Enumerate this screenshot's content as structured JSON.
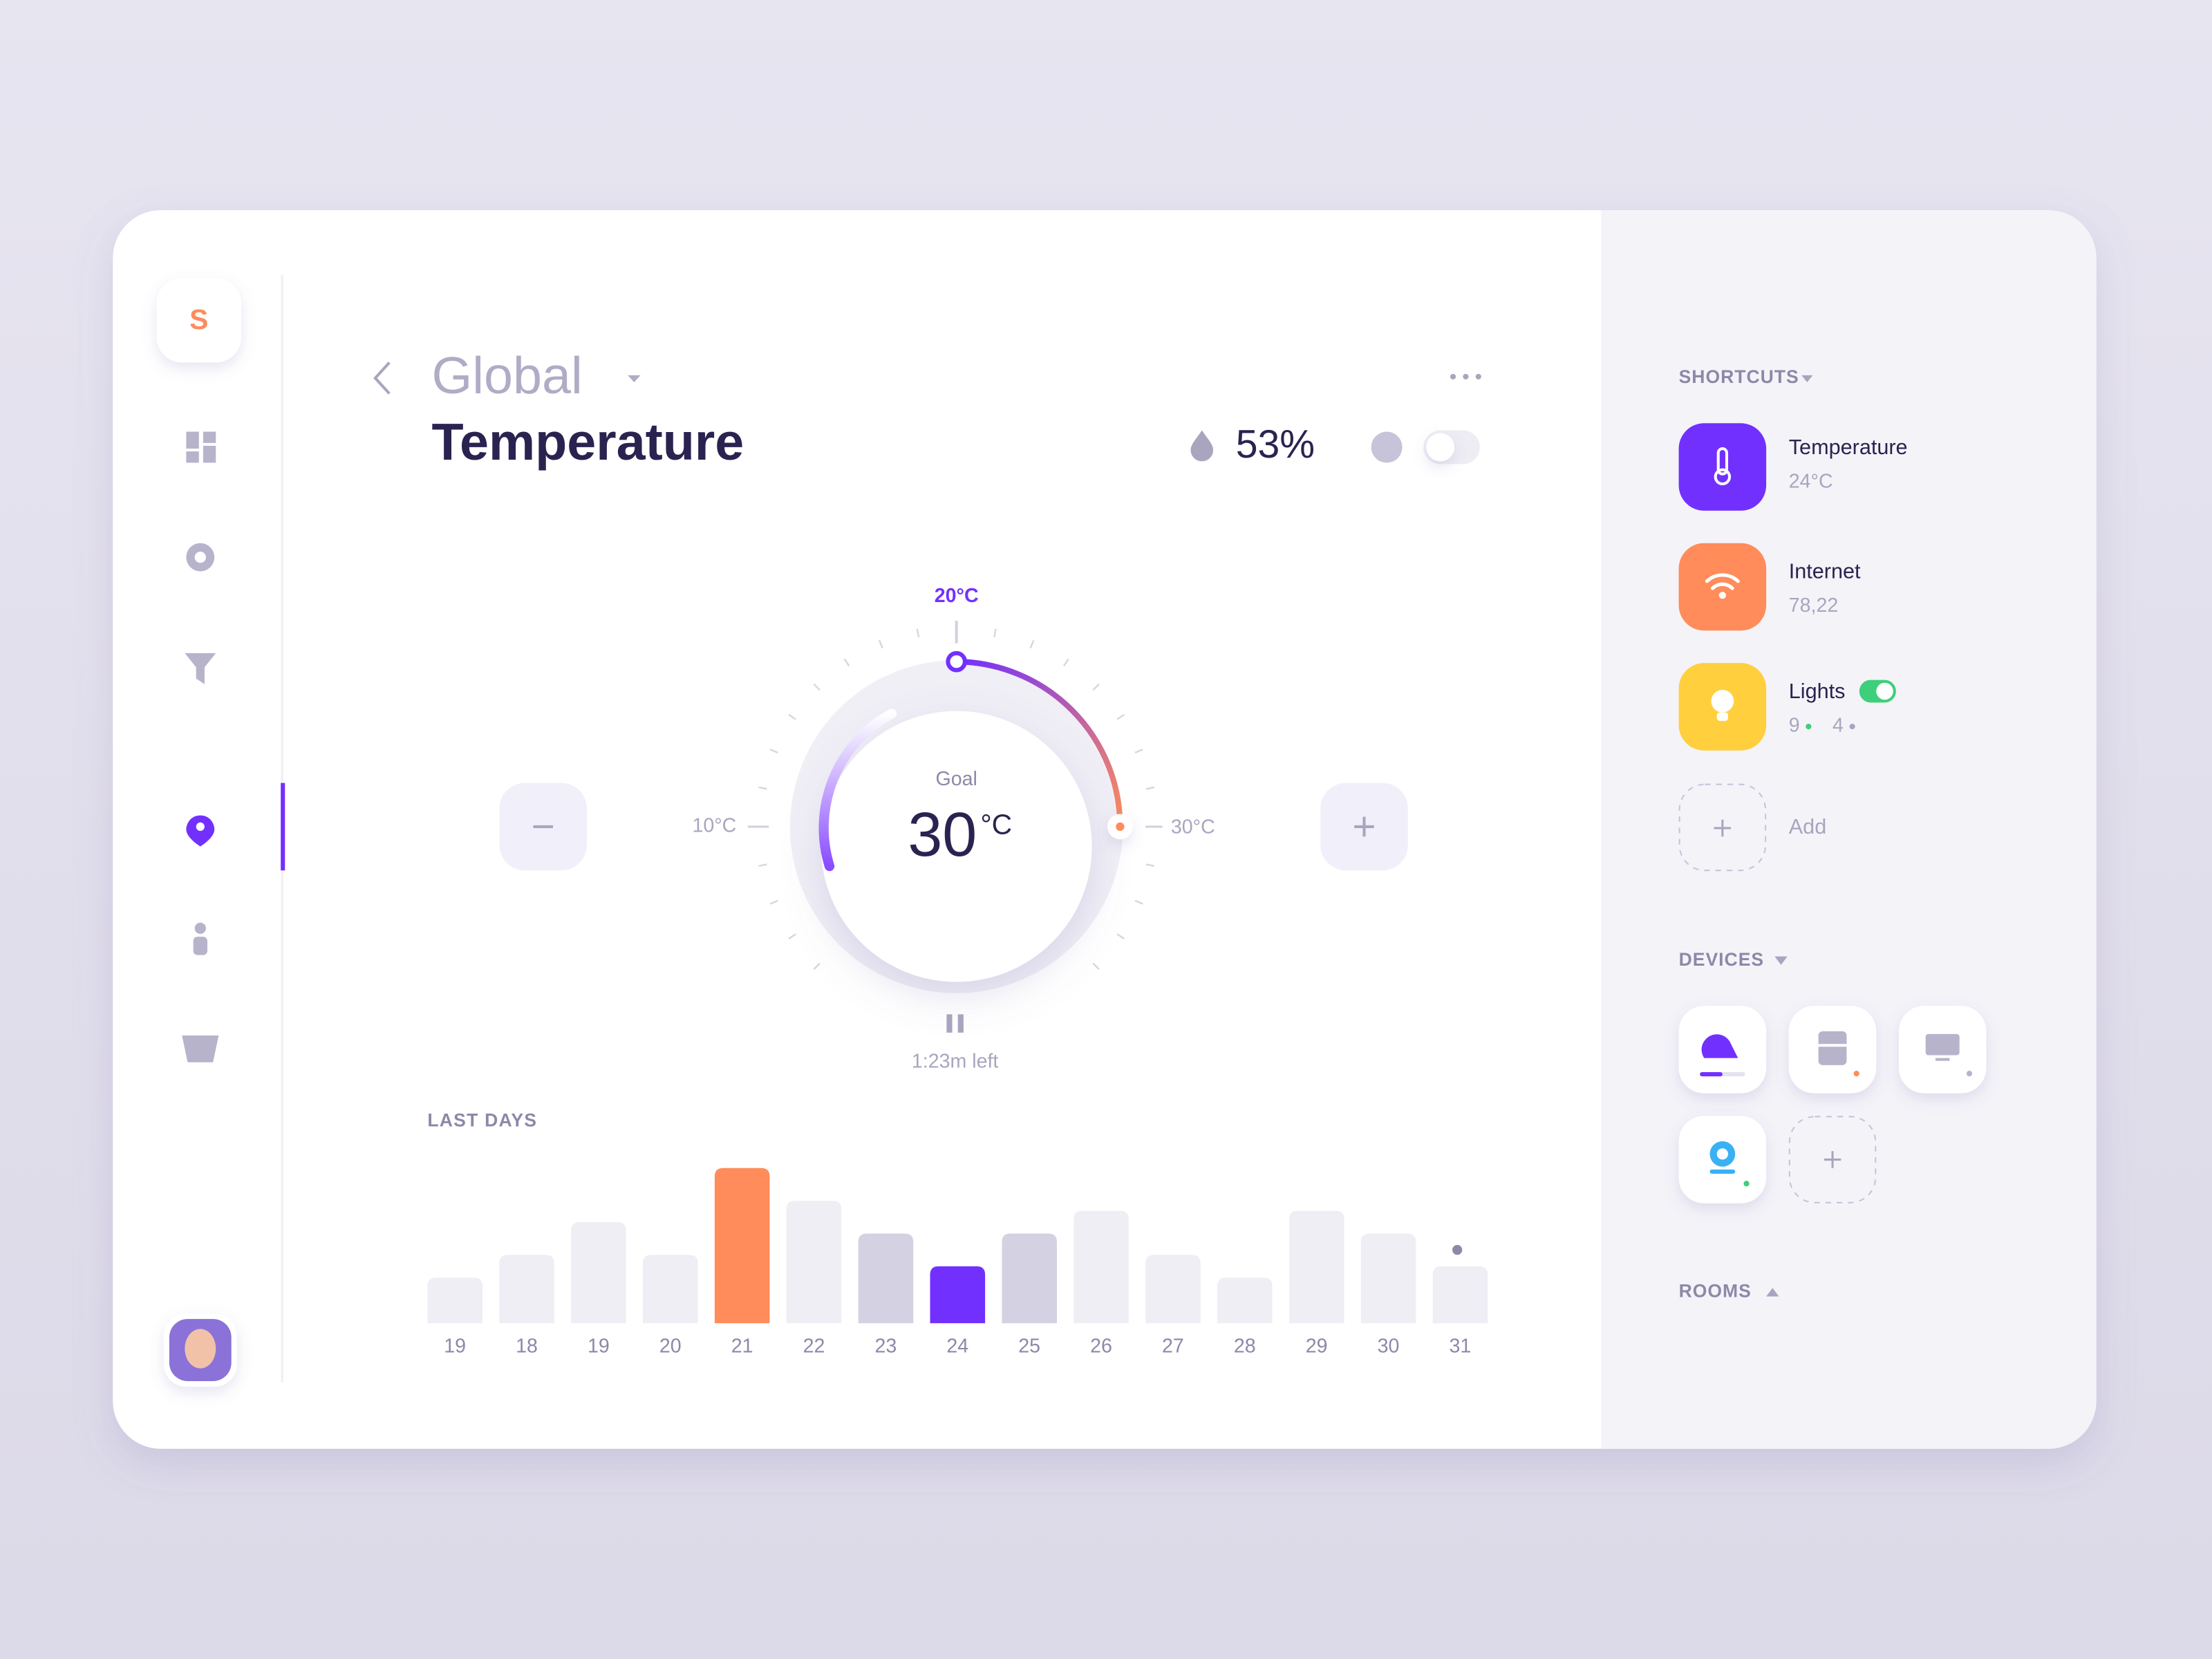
{
  "brand": "S",
  "header": {
    "breadcrumb": "Global",
    "title": "Temperature",
    "humidity": "53%"
  },
  "dial": {
    "current_label": "20°C",
    "min_label": "10°C",
    "max_label": "30°C",
    "goal_label": "Goal",
    "goal_value": "30",
    "goal_unit": "°C",
    "timer": "1:23m left"
  },
  "last_days": {
    "title": "LAST DAYS",
    "categories": [
      "19",
      "18",
      "19",
      "20",
      "21",
      "22",
      "23",
      "24",
      "25",
      "26",
      "27",
      "28",
      "29",
      "30",
      "31"
    ],
    "values": [
      32,
      48,
      71,
      48,
      109,
      86,
      63,
      40,
      63,
      79,
      48,
      32,
      79,
      63,
      40
    ],
    "colors": [
      "#efeef5",
      "#efeef5",
      "#efeef5",
      "#efeef5",
      "#ff8c5a",
      "#efeef5",
      "#d4d1e2",
      "#7230ff",
      "#d4d1e2",
      "#efeef5",
      "#efeef5",
      "#efeef5",
      "#efeef5",
      "#efeef5",
      "#efeef5"
    ]
  },
  "sidebar": {
    "shortcuts_title": "SHORTCUTS",
    "shortcuts": [
      {
        "name": "Temperature",
        "detail": "24°C"
      },
      {
        "name": "Internet",
        "detail": "78,22"
      },
      {
        "name": "Lights",
        "detail_a": "9",
        "detail_b": "4"
      }
    ],
    "add": "Add",
    "devices_title": "DEVICES",
    "rooms_title": "ROOMS"
  }
}
